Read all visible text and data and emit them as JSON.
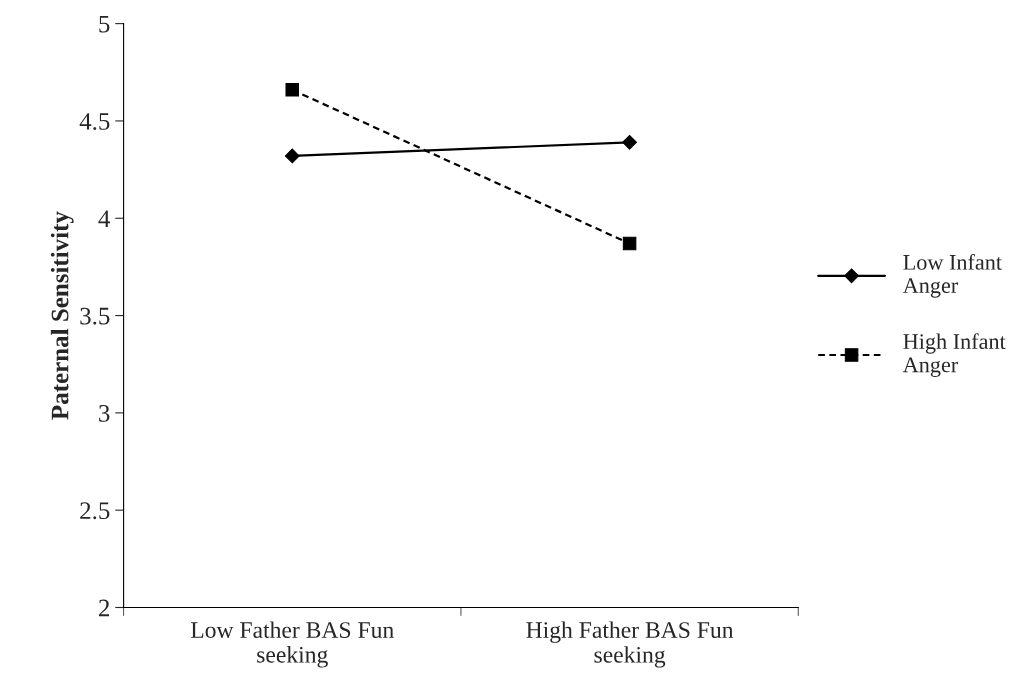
{
  "chart_data": {
    "type": "line",
    "ylabel": "Paternal Sensitivity",
    "categories": [
      "Low Father BAS Fun seeking",
      "High Father BAS Fun seeking"
    ],
    "series": [
      {
        "name": "Low Infant Anger",
        "color": "#000000",
        "values": [
          4.32,
          4.39
        ],
        "marker": "diamond",
        "line_style": "solid"
      },
      {
        "name": "High Infant Anger",
        "color": "#000000",
        "values": [
          4.66,
          3.87
        ],
        "marker": "square",
        "line_style": "dashed"
      }
    ],
    "ylim": [
      2,
      5
    ],
    "yticks": [
      2,
      2.5,
      3,
      3.5,
      4,
      4.5,
      5
    ],
    "grid": false,
    "legend": "right"
  }
}
